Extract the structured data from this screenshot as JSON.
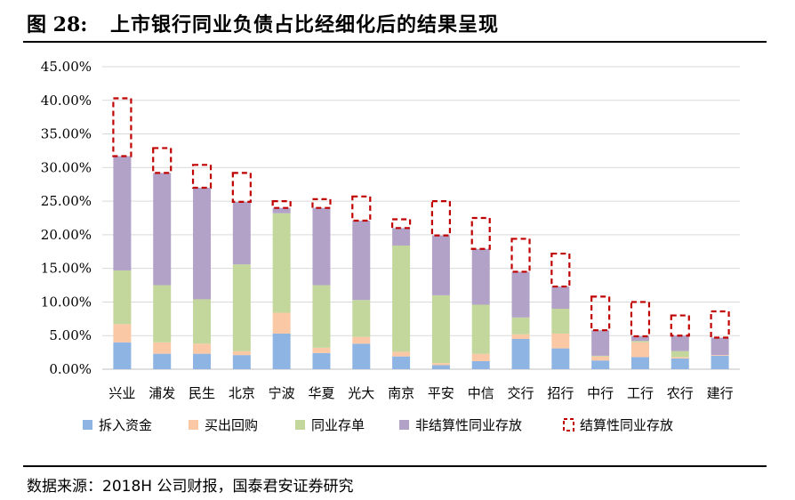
{
  "header": {
    "figure_label": "图 28:",
    "title": "上市银行同业负债占比经细化后的结果呈现"
  },
  "footer": {
    "source": "数据来源：2018H 公司财报，国泰君安证券研究"
  },
  "chart_data": {
    "type": "bar",
    "stacked": true,
    "categories": [
      "兴业",
      "浦发",
      "民生",
      "北京",
      "宁波",
      "华夏",
      "光大",
      "南京",
      "平安",
      "中信",
      "交行",
      "招行",
      "中行",
      "工行",
      "农行",
      "建行"
    ],
    "series": [
      {
        "name": "拆入资金",
        "color": "#8EB4E3",
        "style": "solid",
        "values": [
          4.0,
          2.3,
          2.3,
          2.1,
          5.3,
          2.4,
          3.8,
          1.9,
          0.6,
          1.2,
          4.5,
          3.1,
          1.3,
          1.8,
          1.6,
          2.0
        ]
      },
      {
        "name": "买出回购",
        "color": "#FAC8A5",
        "style": "solid",
        "values": [
          2.7,
          1.7,
          1.5,
          0.6,
          3.1,
          0.8,
          1.0,
          0.7,
          0.3,
          1.1,
          0.7,
          2.2,
          0.6,
          2.2,
          0.2,
          0.1
        ]
      },
      {
        "name": "同业存单",
        "color": "#C3D69B",
        "style": "solid",
        "values": [
          8.0,
          8.5,
          6.6,
          12.9,
          14.8,
          9.3,
          5.5,
          15.8,
          10.1,
          7.3,
          2.5,
          3.7,
          0.1,
          0.2,
          0.9,
          0.0
        ]
      },
      {
        "name": "非结算性同业存放",
        "color": "#B3A2C7",
        "style": "solid",
        "values": [
          17.0,
          16.7,
          16.6,
          9.3,
          0.8,
          11.5,
          11.8,
          2.6,
          8.9,
          8.3,
          6.8,
          3.3,
          3.8,
          0.7,
          2.3,
          2.6
        ]
      },
      {
        "name": "结算性同业存放",
        "color": "#C00000",
        "style": "dashed",
        "values": [
          8.6,
          3.7,
          3.4,
          4.3,
          1.0,
          1.3,
          3.6,
          1.3,
          5.1,
          4.6,
          4.9,
          4.9,
          5.0,
          5.1,
          3.0,
          3.9
        ]
      }
    ],
    "y_ticks": [
      "0.00%",
      "5.00%",
      "10.00%",
      "15.00%",
      "20.00%",
      "25.00%",
      "30.00%",
      "35.00%",
      "40.00%",
      "45.00%"
    ],
    "ylim": [
      0,
      45
    ],
    "y_tick_step": 5,
    "grid": true,
    "legend_position": "bottom"
  }
}
